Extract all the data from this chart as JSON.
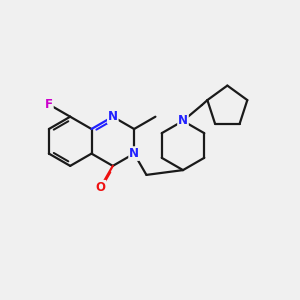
{
  "bg_color": "#f0f0f0",
  "bond_color": "#1a1a1a",
  "N_color": "#2020ff",
  "O_color": "#ee1111",
  "F_color": "#cc00cc",
  "lw": 1.6,
  "fs": 8.5,
  "fig_w": 3.0,
  "fig_h": 3.0,
  "dpi": 100,
  "xlim": [
    0,
    10
  ],
  "ylim": [
    0,
    10
  ]
}
